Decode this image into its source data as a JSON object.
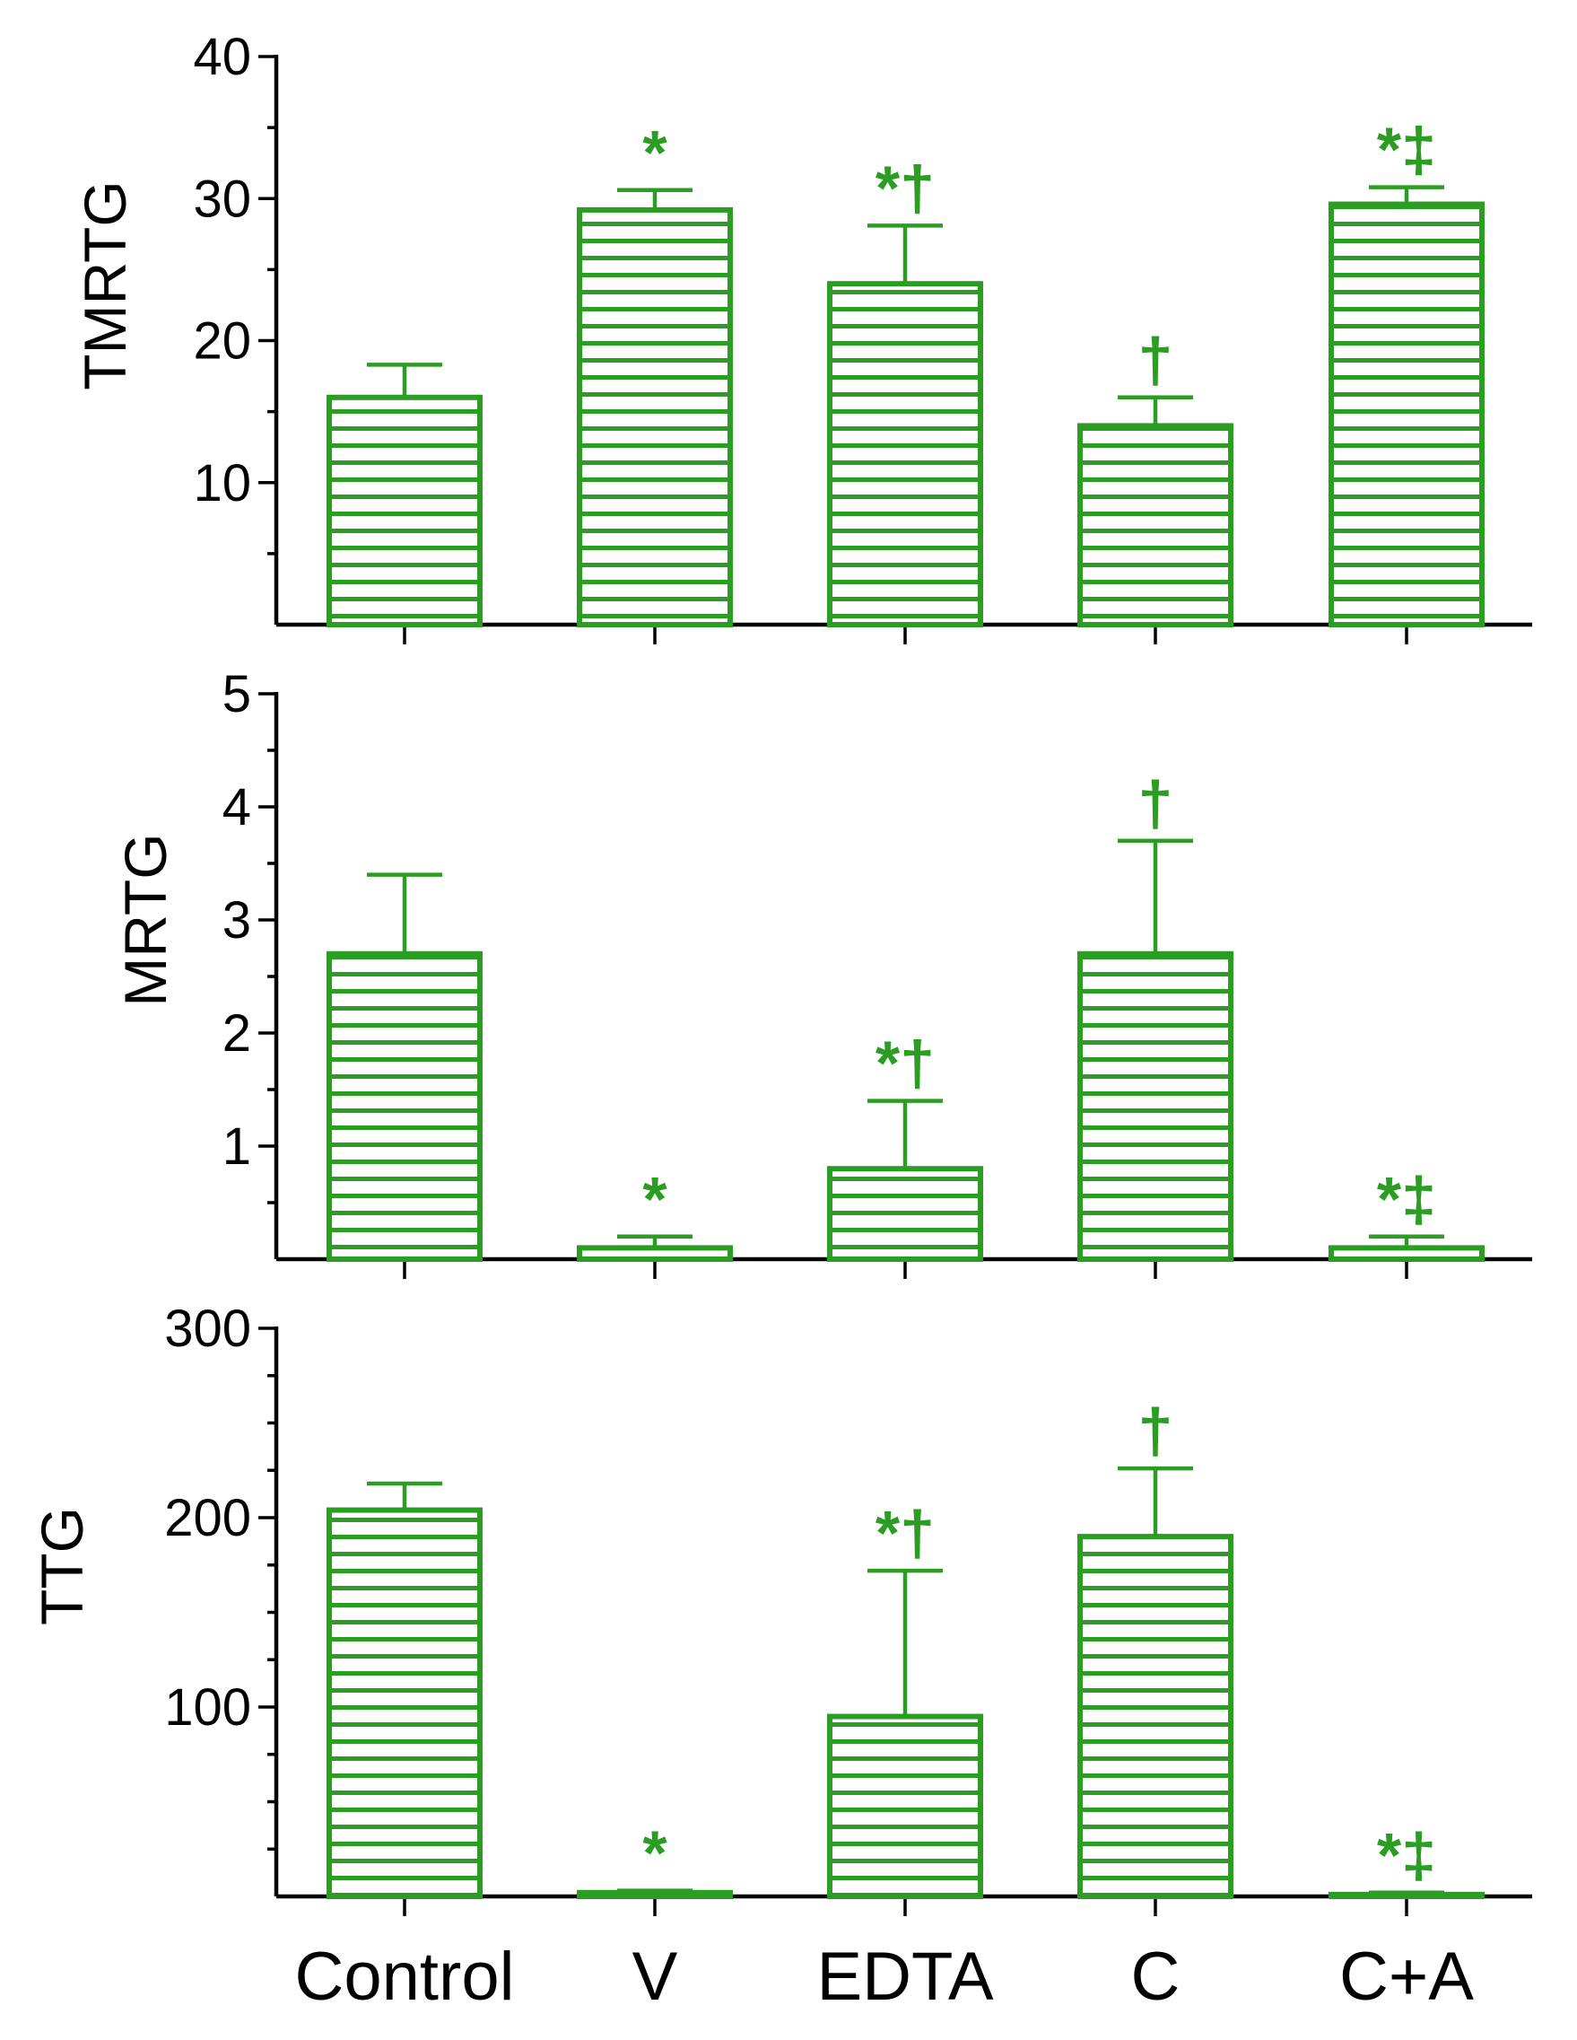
{
  "colors": {
    "bar": "#2a9d22",
    "axis": "#000000"
  },
  "categories": [
    "Control",
    "V",
    "EDTA",
    "C",
    "C+A"
  ],
  "chart_data": [
    {
      "type": "bar",
      "ylabel": "TMRTG",
      "ylim": [
        0,
        40
      ],
      "yticks": [
        10,
        20,
        30,
        40
      ],
      "yticks_labels": [
        "10",
        "20",
        "30",
        "40"
      ],
      "minor_step": 5,
      "values": [
        16,
        29.2,
        24,
        14,
        29.6
      ],
      "errors": [
        2.3,
        1.4,
        4.1,
        2.0,
        1.2
      ],
      "annotations": [
        "",
        "*",
        "*†",
        "†",
        "*‡"
      ]
    },
    {
      "type": "bar",
      "ylabel": "MRTG",
      "ylim": [
        0,
        5
      ],
      "yticks": [
        1,
        2,
        3,
        4,
        5
      ],
      "yticks_labels": [
        "1",
        "2",
        "3",
        "4",
        "5"
      ],
      "minor_step": 0.5,
      "values": [
        2.7,
        0.1,
        0.8,
        2.7,
        0.1
      ],
      "errors": [
        0.7,
        0.1,
        0.6,
        1.0,
        0.1
      ],
      "annotations": [
        "",
        "*",
        "*†",
        "†",
        "*‡"
      ]
    },
    {
      "type": "bar",
      "ylabel": "TTG",
      "ylim": [
        0,
        300
      ],
      "yticks": [
        100,
        200,
        300
      ],
      "yticks_labels": [
        "100",
        "200",
        "300"
      ],
      "minor_step": 25,
      "values": [
        204,
        2,
        95,
        190,
        1
      ],
      "errors": [
        14,
        1,
        77,
        36,
        1
      ],
      "annotations": [
        "",
        "*",
        "*†",
        "†",
        "*‡"
      ]
    }
  ]
}
